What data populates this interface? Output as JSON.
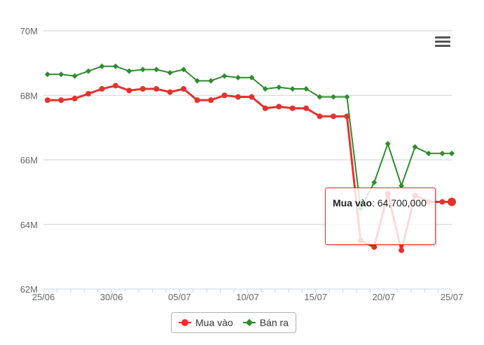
{
  "chart_data": {
    "type": "line",
    "y_axis": {
      "ticks": [
        {
          "label": "62M",
          "value": 62000000
        },
        {
          "label": "64M",
          "value": 64000000
        },
        {
          "label": "66M",
          "value": 66000000
        },
        {
          "label": "68M",
          "value": 68000000
        },
        {
          "label": "70M",
          "value": 70000000
        }
      ],
      "range": [
        62000000,
        70000000
      ]
    },
    "x_axis": {
      "ticks": [
        "25/06",
        "30/06",
        "05/07",
        "10/07",
        "15/07",
        "20/07",
        "25/07"
      ],
      "range": [
        0,
        30
      ]
    },
    "grid": "horizontal",
    "legend_position": "bottom-center",
    "series": [
      {
        "name": "Mua vào",
        "color": "#e5322d",
        "marker": "circle",
        "points": [
          [
            0.3,
            67850000
          ],
          [
            1.3,
            67850000
          ],
          [
            2.3,
            67900000
          ],
          [
            3.3,
            68050000
          ],
          [
            4.3,
            68200000
          ],
          [
            5.3,
            68300000
          ],
          [
            6.3,
            68150000
          ],
          [
            7.3,
            68200000
          ],
          [
            8.3,
            68200000
          ],
          [
            9.3,
            68100000
          ],
          [
            10.3,
            68200000
          ],
          [
            11.3,
            67850000
          ],
          [
            12.3,
            67850000
          ],
          [
            13.3,
            68000000
          ],
          [
            14.3,
            67950000
          ],
          [
            15.3,
            67950000
          ],
          [
            16.3,
            67600000
          ],
          [
            17.3,
            67650000
          ],
          [
            18.3,
            67600000
          ],
          [
            19.3,
            67600000
          ],
          [
            20.3,
            67350000
          ],
          [
            21.3,
            67350000
          ],
          [
            22.3,
            67350000
          ],
          [
            23.3,
            63500000
          ],
          [
            24.3,
            63300000
          ],
          [
            25.3,
            64950000
          ],
          [
            26.3,
            63200000
          ],
          [
            27.3,
            64900000
          ],
          [
            28.3,
            64700000
          ],
          [
            29.3,
            64700000
          ],
          [
            30.0,
            64700000
          ]
        ]
      },
      {
        "name": "Bán ra",
        "color": "#2e8b2e",
        "marker": "diamond",
        "points": [
          [
            0.3,
            68650000
          ],
          [
            1.3,
            68650000
          ],
          [
            2.3,
            68600000
          ],
          [
            3.3,
            68750000
          ],
          [
            4.3,
            68900000
          ],
          [
            5.3,
            68900000
          ],
          [
            6.3,
            68750000
          ],
          [
            7.3,
            68800000
          ],
          [
            8.3,
            68800000
          ],
          [
            9.3,
            68700000
          ],
          [
            10.3,
            68800000
          ],
          [
            11.3,
            68450000
          ],
          [
            12.3,
            68450000
          ],
          [
            13.3,
            68600000
          ],
          [
            14.3,
            68550000
          ],
          [
            15.3,
            68550000
          ],
          [
            16.3,
            68200000
          ],
          [
            17.3,
            68250000
          ],
          [
            18.3,
            68200000
          ],
          [
            19.3,
            68200000
          ],
          [
            20.3,
            67950000
          ],
          [
            21.3,
            67950000
          ],
          [
            22.3,
            67950000
          ],
          [
            23.3,
            64500000
          ],
          [
            24.3,
            65300000
          ],
          [
            25.3,
            66500000
          ],
          [
            26.3,
            65200000
          ],
          [
            27.3,
            66400000
          ],
          [
            28.3,
            66200000
          ],
          [
            29.3,
            66200000
          ],
          [
            30.0,
            66200000
          ]
        ]
      }
    ],
    "highlighted_point": {
      "series": 0,
      "index": 30
    }
  },
  "tooltip": {
    "series_name": "Mua vào",
    "value": "64,700,000"
  },
  "legend": {
    "items": [
      {
        "label": "Mua vào",
        "color": "#e5322d"
      },
      {
        "label": "Bán ra",
        "color": "#2e8b2e"
      }
    ]
  },
  "menu": {
    "icon": "menu-icon"
  }
}
